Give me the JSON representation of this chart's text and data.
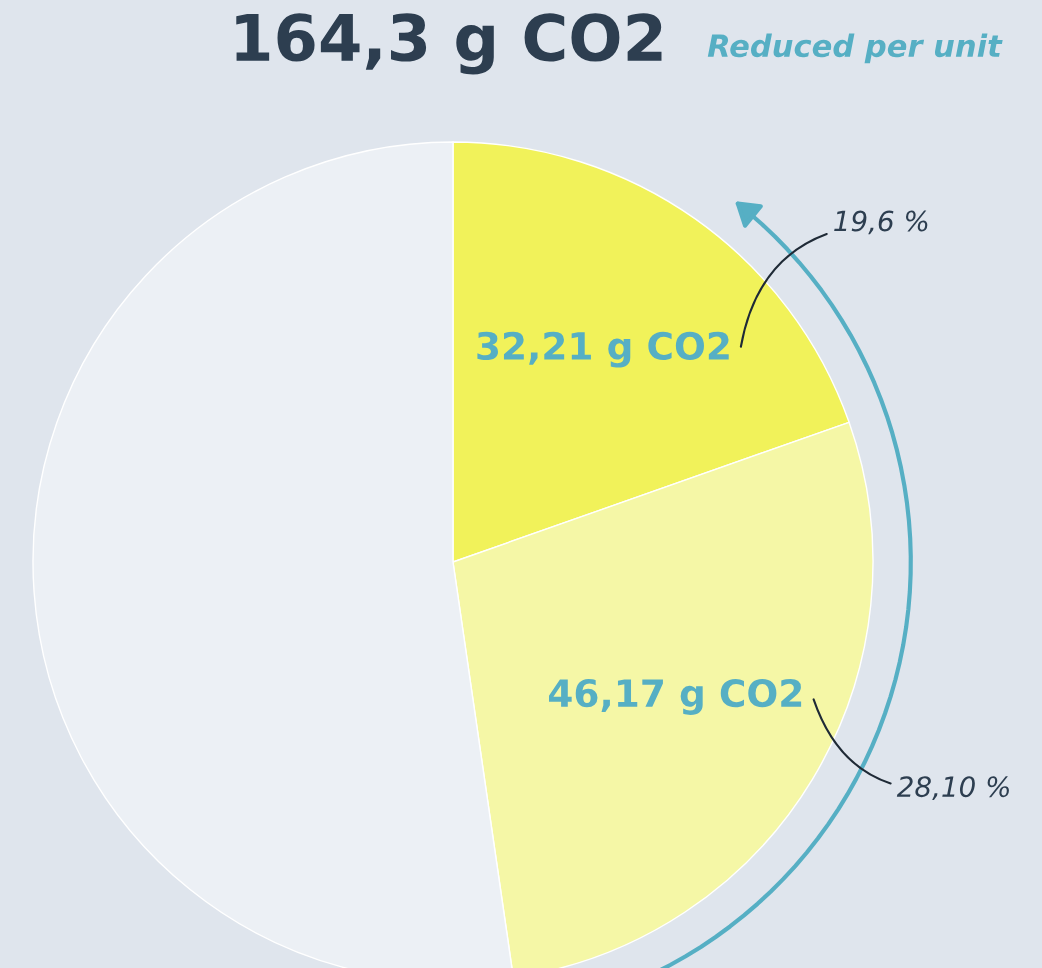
{
  "chart_data": {
    "type": "pie",
    "title": "164,3 g CO2",
    "categories": [
      null,
      null,
      null
    ],
    "values": [
      32.21,
      46.17,
      85.92
    ],
    "colors": [
      "#f1f25a",
      "#f5f7a6",
      "#ecf0f5"
    ],
    "value_labels": [
      "32,21 g CO2",
      "46,17 g CO2",
      null
    ],
    "annotations": [
      "19,6 %",
      "28,10 %",
      "Reduced per unit"
    ],
    "legend": false
  }
}
